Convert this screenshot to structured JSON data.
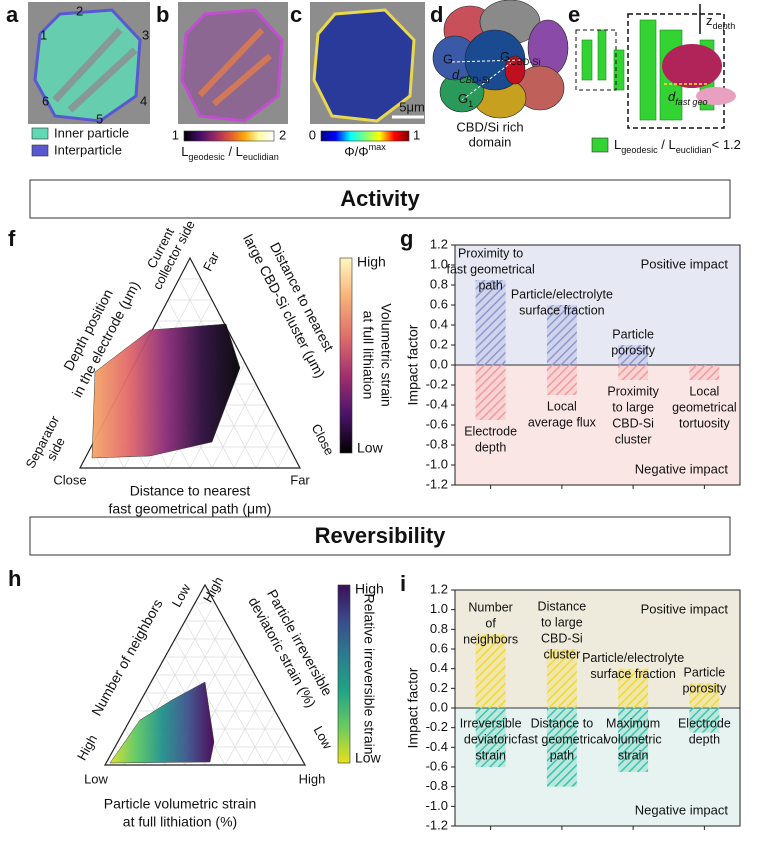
{
  "sections": [
    "Activity",
    "Reversibility"
  ],
  "panel_a": {
    "letter": "a",
    "regions": [
      "1",
      "2",
      "3",
      "4",
      "5",
      "6"
    ],
    "legend": [
      {
        "name": "Inner particle",
        "color": "#5fd8b4"
      },
      {
        "name": "Interparticle",
        "color": "#5a58d0"
      }
    ]
  },
  "panel_b": {
    "letter": "b",
    "cbar_ticks": [
      1,
      2
    ],
    "cbar_label": {
      "l1": "L",
      "s1": "geodesic",
      "mid": " / L",
      "s2": "euclidian"
    }
  },
  "panel_c": {
    "letter": "c",
    "cbar_ticks": [
      0,
      1
    ],
    "cbar_label": {
      "base": "Φ/Φ",
      "sup": "max"
    },
    "scale_bar": "5μm"
  },
  "panel_d": {
    "letter": "d",
    "g_top": "G",
    "g_base": "G",
    "g_sub": "CBD-Si",
    "d_base": "d",
    "d_sub": "CBD-Si",
    "g1_base": "G",
    "g1_sub": "1",
    "domain_label": [
      "CBD/Si rich",
      "domain"
    ]
  },
  "panel_e": {
    "letter": "e",
    "z_base": "z",
    "z_sub": "depth",
    "d_base": "d",
    "d_sub": "fast geo",
    "legend": {
      "l1": "L",
      "s1": "geodesic",
      "mid": " / L",
      "s2": "euclidian",
      "tail": "< 1.2"
    },
    "legend_color": "#33d333"
  },
  "ternary": [
    {
      "letter": "f",
      "left_axis": [
        "Depth position",
        "in the electrode (μm)"
      ],
      "right_axis": [
        "Distance to nearest",
        "large CBD-Si cluster (μm)"
      ],
      "bottom_axis": [
        "Distance to nearest",
        "fast geometrical path (μm)"
      ],
      "top_left_end": [
        "Current",
        "collector side"
      ],
      "left_end": [
        "Separator",
        "side"
      ],
      "top_right_end": "Far",
      "bottom_left_end": "Close",
      "bottom_right_end": "Far",
      "right_end": "Close",
      "cbar": [
        "High",
        "Low"
      ],
      "cbar_label": [
        "Volumetric strain",
        "at full lithiation"
      ]
    },
    {
      "letter": "h",
      "left_axis": [
        "Number of neighbors"
      ],
      "right_axis": [
        "Particle irreversible",
        "deviatoric strain (%)"
      ],
      "bottom_axis": [
        "Particle volumetric strain",
        "at full lithiation (%)"
      ],
      "top_left_end": [
        "Low"
      ],
      "left_end": [
        "High"
      ],
      "top_right_end": "High",
      "bottom_left_end": "Low",
      "bottom_right_end": "High",
      "right_end": "Low",
      "cbar": [
        "High",
        "Low"
      ],
      "cbar_label": [
        "Relative irreversible strain"
      ]
    }
  ],
  "chart_data": [
    {
      "type": "bar",
      "letter": "g",
      "ylabel": "Impact factor",
      "ylim": [
        -1.2,
        1.2
      ],
      "yticks": [
        -1.2,
        {
          "value": -1,
          "label": "-1.0"
        },
        -0.8,
        -0.6,
        -0.4,
        -0.2,
        {
          "value": 0,
          "label": "0.0"
        },
        0.2,
        0.4,
        0.6,
        0.8,
        {
          "value": 1,
          "label": "1.0"
        },
        1.2
      ],
      "categories": [
        null,
        null,
        null,
        null
      ],
      "series": [
        {
          "name": "Positive impact",
          "color": "#8f96d2",
          "band_color": "#e6e8f3",
          "text_color": "#1f2d8a",
          "values": [
            0.85,
            0.6,
            0.2,
            null
          ],
          "labels": [
            [
              "Proximity to",
              "fast geometrical",
              "path"
            ],
            [
              "Particle/electrolyte",
              "surface fraction"
            ],
            [
              "Particle",
              "porosity"
            ],
            null
          ]
        },
        {
          "name": "Negative impact",
          "color": "#f29a9a",
          "band_color": "#fbe6e6",
          "text_color": "#8e1b2a",
          "values": [
            -0.55,
            -0.3,
            -0.15,
            -0.15
          ],
          "labels": [
            [
              "Electrode",
              "depth"
            ],
            [
              "Local",
              "average flux"
            ],
            [
              "Proximity",
              "to large",
              "CBD-Si",
              "cluster"
            ],
            [
              "Local",
              "geometrical",
              "tortuosity"
            ]
          ]
        }
      ]
    },
    {
      "type": "bar",
      "letter": "i",
      "ylabel": "Impact factor",
      "ylim": [
        -1.2,
        1.2
      ],
      "yticks": [
        -1.2,
        {
          "value": -1,
          "label": "-1.0"
        },
        -0.8,
        -0.6,
        -0.4,
        -0.2,
        {
          "value": 0,
          "label": "0.0"
        },
        0.2,
        0.4,
        0.6,
        0.8,
        {
          "value": 1,
          "label": "1.0"
        },
        1.2
      ],
      "categories": [
        null,
        null,
        null,
        null
      ],
      "series": [
        {
          "name": "Positive impact",
          "color": "#f3d92a",
          "band_color": "#efebdc",
          "text_color": "#7d6e0e",
          "values": [
            0.75,
            0.6,
            0.4,
            0.25
          ],
          "labels": [
            [
              "Number",
              "of",
              "neighbors"
            ],
            [
              "Distance",
              "to large",
              "CBD-Si",
              "cluster"
            ],
            [
              "Particle/electrolyte",
              "surface fraction"
            ],
            [
              "Particle",
              "porosity"
            ]
          ]
        },
        {
          "name": "Negative impact",
          "color": "#3cc4a8",
          "band_color": "#e7f3f1",
          "text_color": "#0e6e5c",
          "values": [
            -0.6,
            -0.8,
            -0.65,
            -0.25
          ],
          "labels": [
            [
              "Irreversible",
              "deviatoric",
              "strain"
            ],
            [
              "Distance to",
              "fast geometrical",
              "path"
            ],
            [
              "Maximum",
              "volumetric",
              "strain"
            ],
            [
              "Electrode",
              "depth"
            ]
          ]
        }
      ]
    }
  ]
}
